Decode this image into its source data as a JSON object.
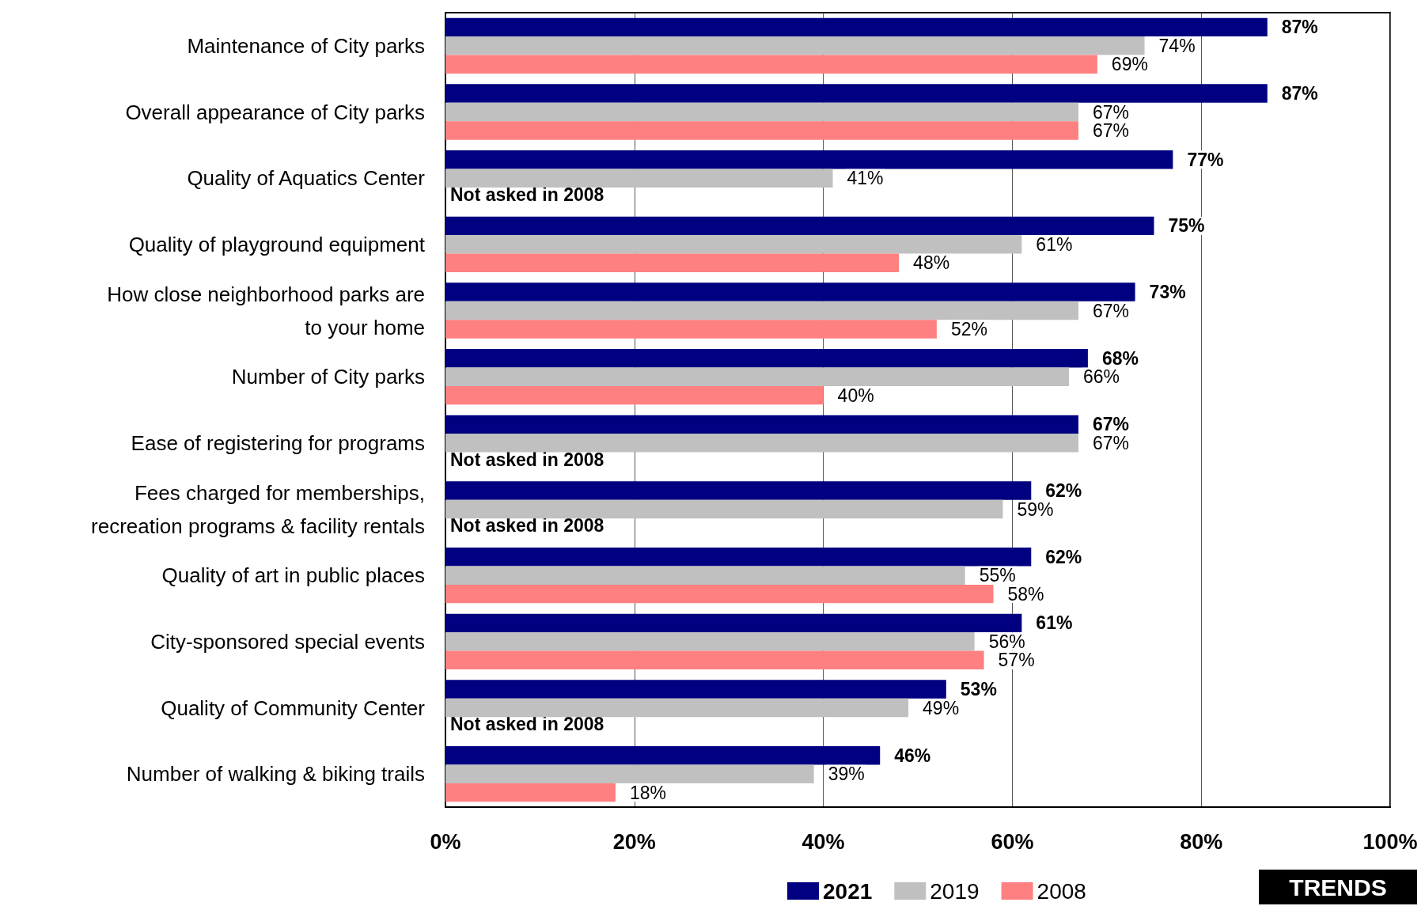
{
  "chart_data": {
    "type": "bar",
    "orientation": "horizontal",
    "categories": [
      "Maintenance of City parks",
      "Overall appearance of City parks",
      "Quality of Aquatics Center",
      "Quality of playground equipment",
      "How close neighborhood parks are\nto your home",
      "Number of City parks",
      "Ease of registering for programs",
      "Fees charged for memberships,\nrecreation programs & facility rentals",
      "Quality of art in public places",
      "City-sponsored special events",
      "Quality of Community Center",
      "Number of walking & biking trails"
    ],
    "series": [
      {
        "name": "2021",
        "color": "#000080",
        "values": [
          87,
          87,
          77,
          75,
          73,
          68,
          67,
          62,
          62,
          61,
          53,
          46
        ],
        "value_labels": [
          "87%",
          "87%",
          "77%",
          "75%",
          "73%",
          "68%",
          "67%",
          "62%",
          "62%",
          "61%",
          "53%",
          "46%"
        ]
      },
      {
        "name": "2019",
        "color": "#c0c0c0",
        "values": [
          74,
          67,
          41,
          61,
          67,
          66,
          67,
          59,
          55,
          56,
          49,
          39
        ],
        "value_labels": [
          "74%",
          "67%",
          "41%",
          "61%",
          "67%",
          "66%",
          "67%",
          "59%",
          "55%",
          "56%",
          "49%",
          "39%"
        ]
      },
      {
        "name": "2008",
        "color": "#ff8080",
        "values": [
          69,
          67,
          null,
          48,
          52,
          40,
          null,
          null,
          58,
          57,
          null,
          18
        ],
        "value_labels": [
          "69%",
          "67%",
          null,
          "48%",
          "52%",
          "40%",
          null,
          null,
          "58%",
          "57%",
          null,
          "18%"
        ]
      }
    ],
    "xlim": [
      0,
      100
    ],
    "xticks": [
      {
        "value": 0,
        "label": "0%"
      },
      {
        "value": 20,
        "label": "20%"
      },
      {
        "value": 40,
        "label": "40%"
      },
      {
        "value": 60,
        "label": "60%"
      },
      {
        "value": 80,
        "label": "80%"
      },
      {
        "value": 100,
        "label": "100%"
      }
    ],
    "grid": "x",
    "legend": "bottom",
    "annotations": [
      "Not asked in 2008",
      "Not asked in 2008",
      "Not asked in 2008",
      "Not asked in 2008",
      "TRENDS"
    ]
  }
}
